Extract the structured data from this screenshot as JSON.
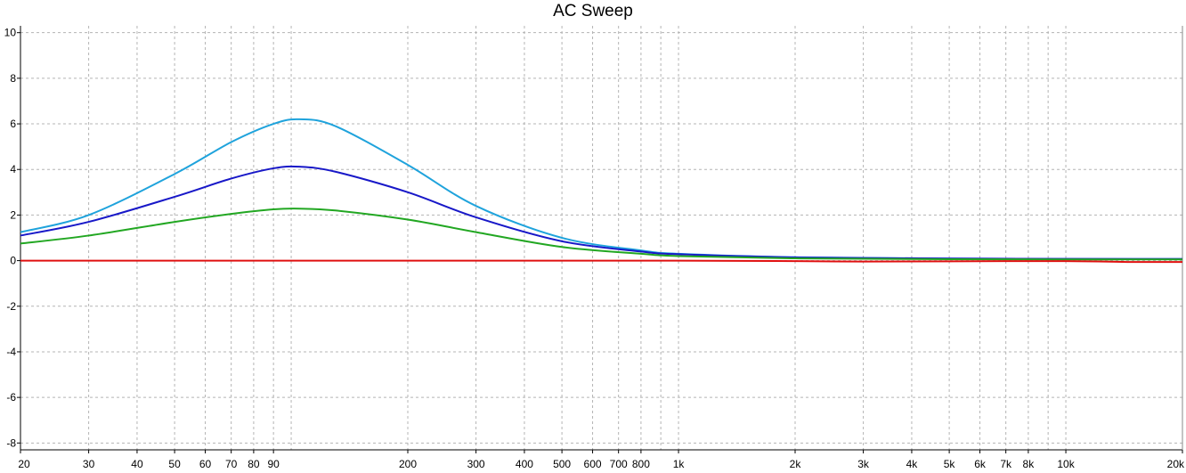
{
  "chart_data": {
    "type": "line",
    "title": "AC Sweep",
    "xlabel": "",
    "ylabel": "",
    "x_scale": "log",
    "xlim": [
      20,
      20000
    ],
    "ylim": [
      -8.3,
      10.3
    ],
    "grid": true,
    "x_ticks": [
      {
        "value": 20,
        "label": "20"
      },
      {
        "value": 30,
        "label": "30"
      },
      {
        "value": 40,
        "label": "40"
      },
      {
        "value": 50,
        "label": "50"
      },
      {
        "value": 60,
        "label": "60"
      },
      {
        "value": 70,
        "label": "70"
      },
      {
        "value": 80,
        "label": "80"
      },
      {
        "value": 90,
        "label": "90"
      },
      {
        "value": 200,
        "label": "200"
      },
      {
        "value": 300,
        "label": "300"
      },
      {
        "value": 400,
        "label": "400"
      },
      {
        "value": 500,
        "label": "500"
      },
      {
        "value": 600,
        "label": "600"
      },
      {
        "value": 700,
        "label": "700"
      },
      {
        "value": 800,
        "label": "800"
      },
      {
        "value": 1000,
        "label": "1k"
      },
      {
        "value": 2000,
        "label": "2k"
      },
      {
        "value": 3000,
        "label": "3k"
      },
      {
        "value": 4000,
        "label": "4k"
      },
      {
        "value": 5000,
        "label": "5k"
      },
      {
        "value": 6000,
        "label": "6k"
      },
      {
        "value": 7000,
        "label": "7k"
      },
      {
        "value": 8000,
        "label": "8k"
      },
      {
        "value": 10000,
        "label": "10k"
      },
      {
        "value": 20000,
        "label": "20k"
      }
    ],
    "x_gridlines": [
      20,
      30,
      40,
      50,
      60,
      70,
      80,
      90,
      100,
      200,
      300,
      400,
      500,
      600,
      700,
      800,
      900,
      1000,
      2000,
      3000,
      4000,
      5000,
      6000,
      7000,
      8000,
      9000,
      10000,
      20000
    ],
    "y_ticks": [
      {
        "value": 10,
        "label": "10"
      },
      {
        "value": 8,
        "label": "8"
      },
      {
        "value": 6,
        "label": "6"
      },
      {
        "value": 4,
        "label": "4"
      },
      {
        "value": 2,
        "label": "2"
      },
      {
        "value": 0,
        "label": "0"
      },
      {
        "value": -2,
        "label": "-2"
      },
      {
        "value": -4,
        "label": "-4"
      },
      {
        "value": -6,
        "label": "-6"
      },
      {
        "value": -8,
        "label": "-8"
      }
    ],
    "series": [
      {
        "color": "#1fa3dc",
        "x": [
          20,
          30,
          50,
          70,
          90,
          105,
          130,
          200,
          300,
          500,
          800,
          1000,
          2000,
          5000,
          20000
        ],
        "y": [
          1.25,
          2.0,
          3.8,
          5.2,
          6.0,
          6.2,
          5.9,
          4.2,
          2.4,
          1.0,
          0.45,
          0.3,
          0.15,
          0.09,
          0.07
        ]
      },
      {
        "color": "#1818c8",
        "x": [
          20,
          30,
          50,
          70,
          90,
          105,
          130,
          200,
          300,
          500,
          800,
          1000,
          2000,
          5000,
          20000
        ],
        "y": [
          1.1,
          1.7,
          2.8,
          3.6,
          4.05,
          4.12,
          3.9,
          3.0,
          1.9,
          0.85,
          0.4,
          0.28,
          0.14,
          0.09,
          0.07
        ]
      },
      {
        "color": "#22a722",
        "x": [
          20,
          30,
          50,
          70,
          90,
          105,
          130,
          200,
          300,
          500,
          800,
          1000,
          2000,
          5000,
          20000
        ],
        "y": [
          0.75,
          1.1,
          1.7,
          2.05,
          2.25,
          2.28,
          2.2,
          1.8,
          1.25,
          0.6,
          0.3,
          0.2,
          0.1,
          0.06,
          0.05
        ]
      },
      {
        "color": "#e01010",
        "x": [
          20,
          100,
          1000,
          2000,
          3000,
          5000,
          10000,
          15000,
          20000
        ],
        "y": [
          0.0,
          0.0,
          0.0,
          -0.02,
          -0.04,
          -0.03,
          -0.02,
          -0.06,
          -0.06
        ]
      }
    ]
  }
}
